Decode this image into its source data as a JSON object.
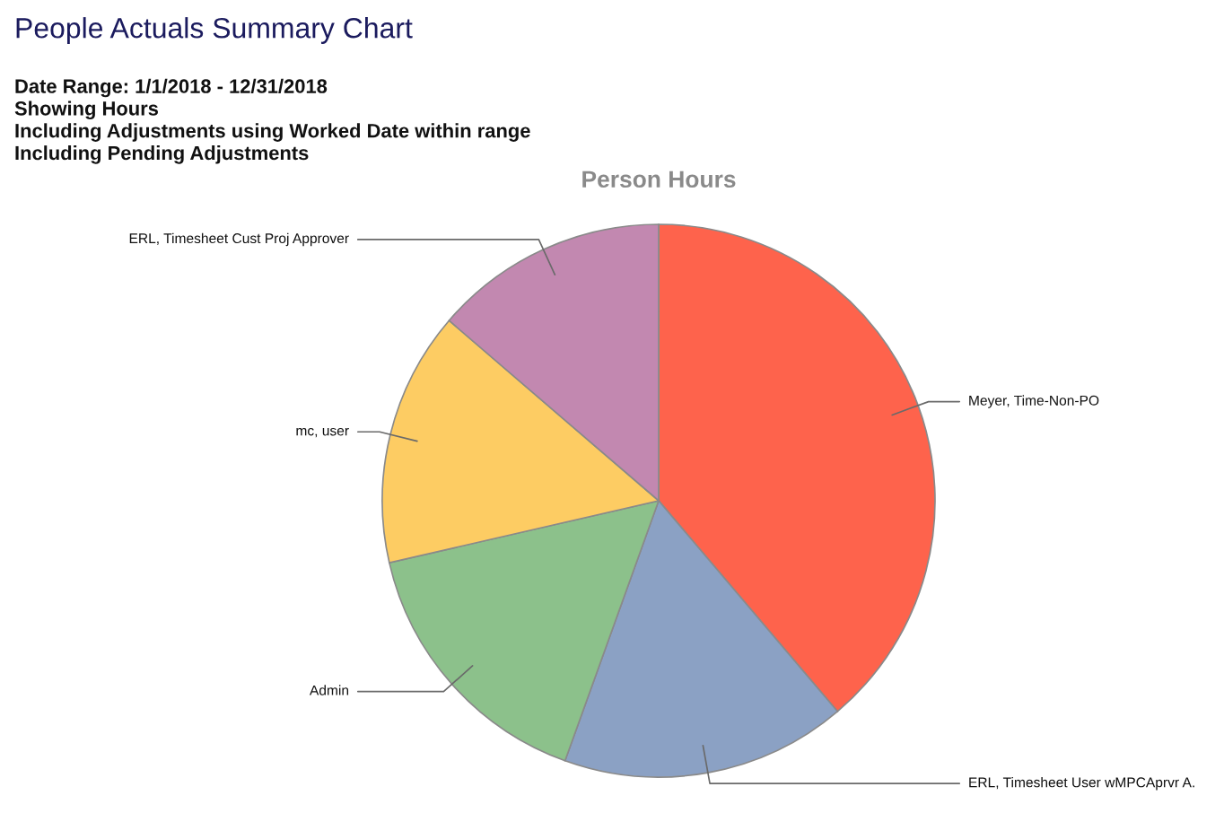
{
  "chart_data": {
    "type": "pie",
    "title": "People Actuals Summary Chart",
    "subtitle": "Person Hours",
    "annotations": [
      "Date Range: 1/1/2018 - 12/31/2018",
      "Showing Hours",
      "Including Adjustments using Worked Date within range",
      "Including Pending Adjustments"
    ],
    "categories": [
      "Meyer, Time-Non-PO",
      "ERL, Timesheet User wMPCAprvr A.",
      "Admin",
      "mc, user",
      "ERL, Timesheet Cust Proj Approver"
    ],
    "values": [
      38.8,
      16.7,
      15.9,
      14.9,
      13.7
    ],
    "colors": [
      "#fe634c",
      "#8ba1c4",
      "#8cc18b",
      "#fdcc63",
      "#c288b0"
    ]
  }
}
